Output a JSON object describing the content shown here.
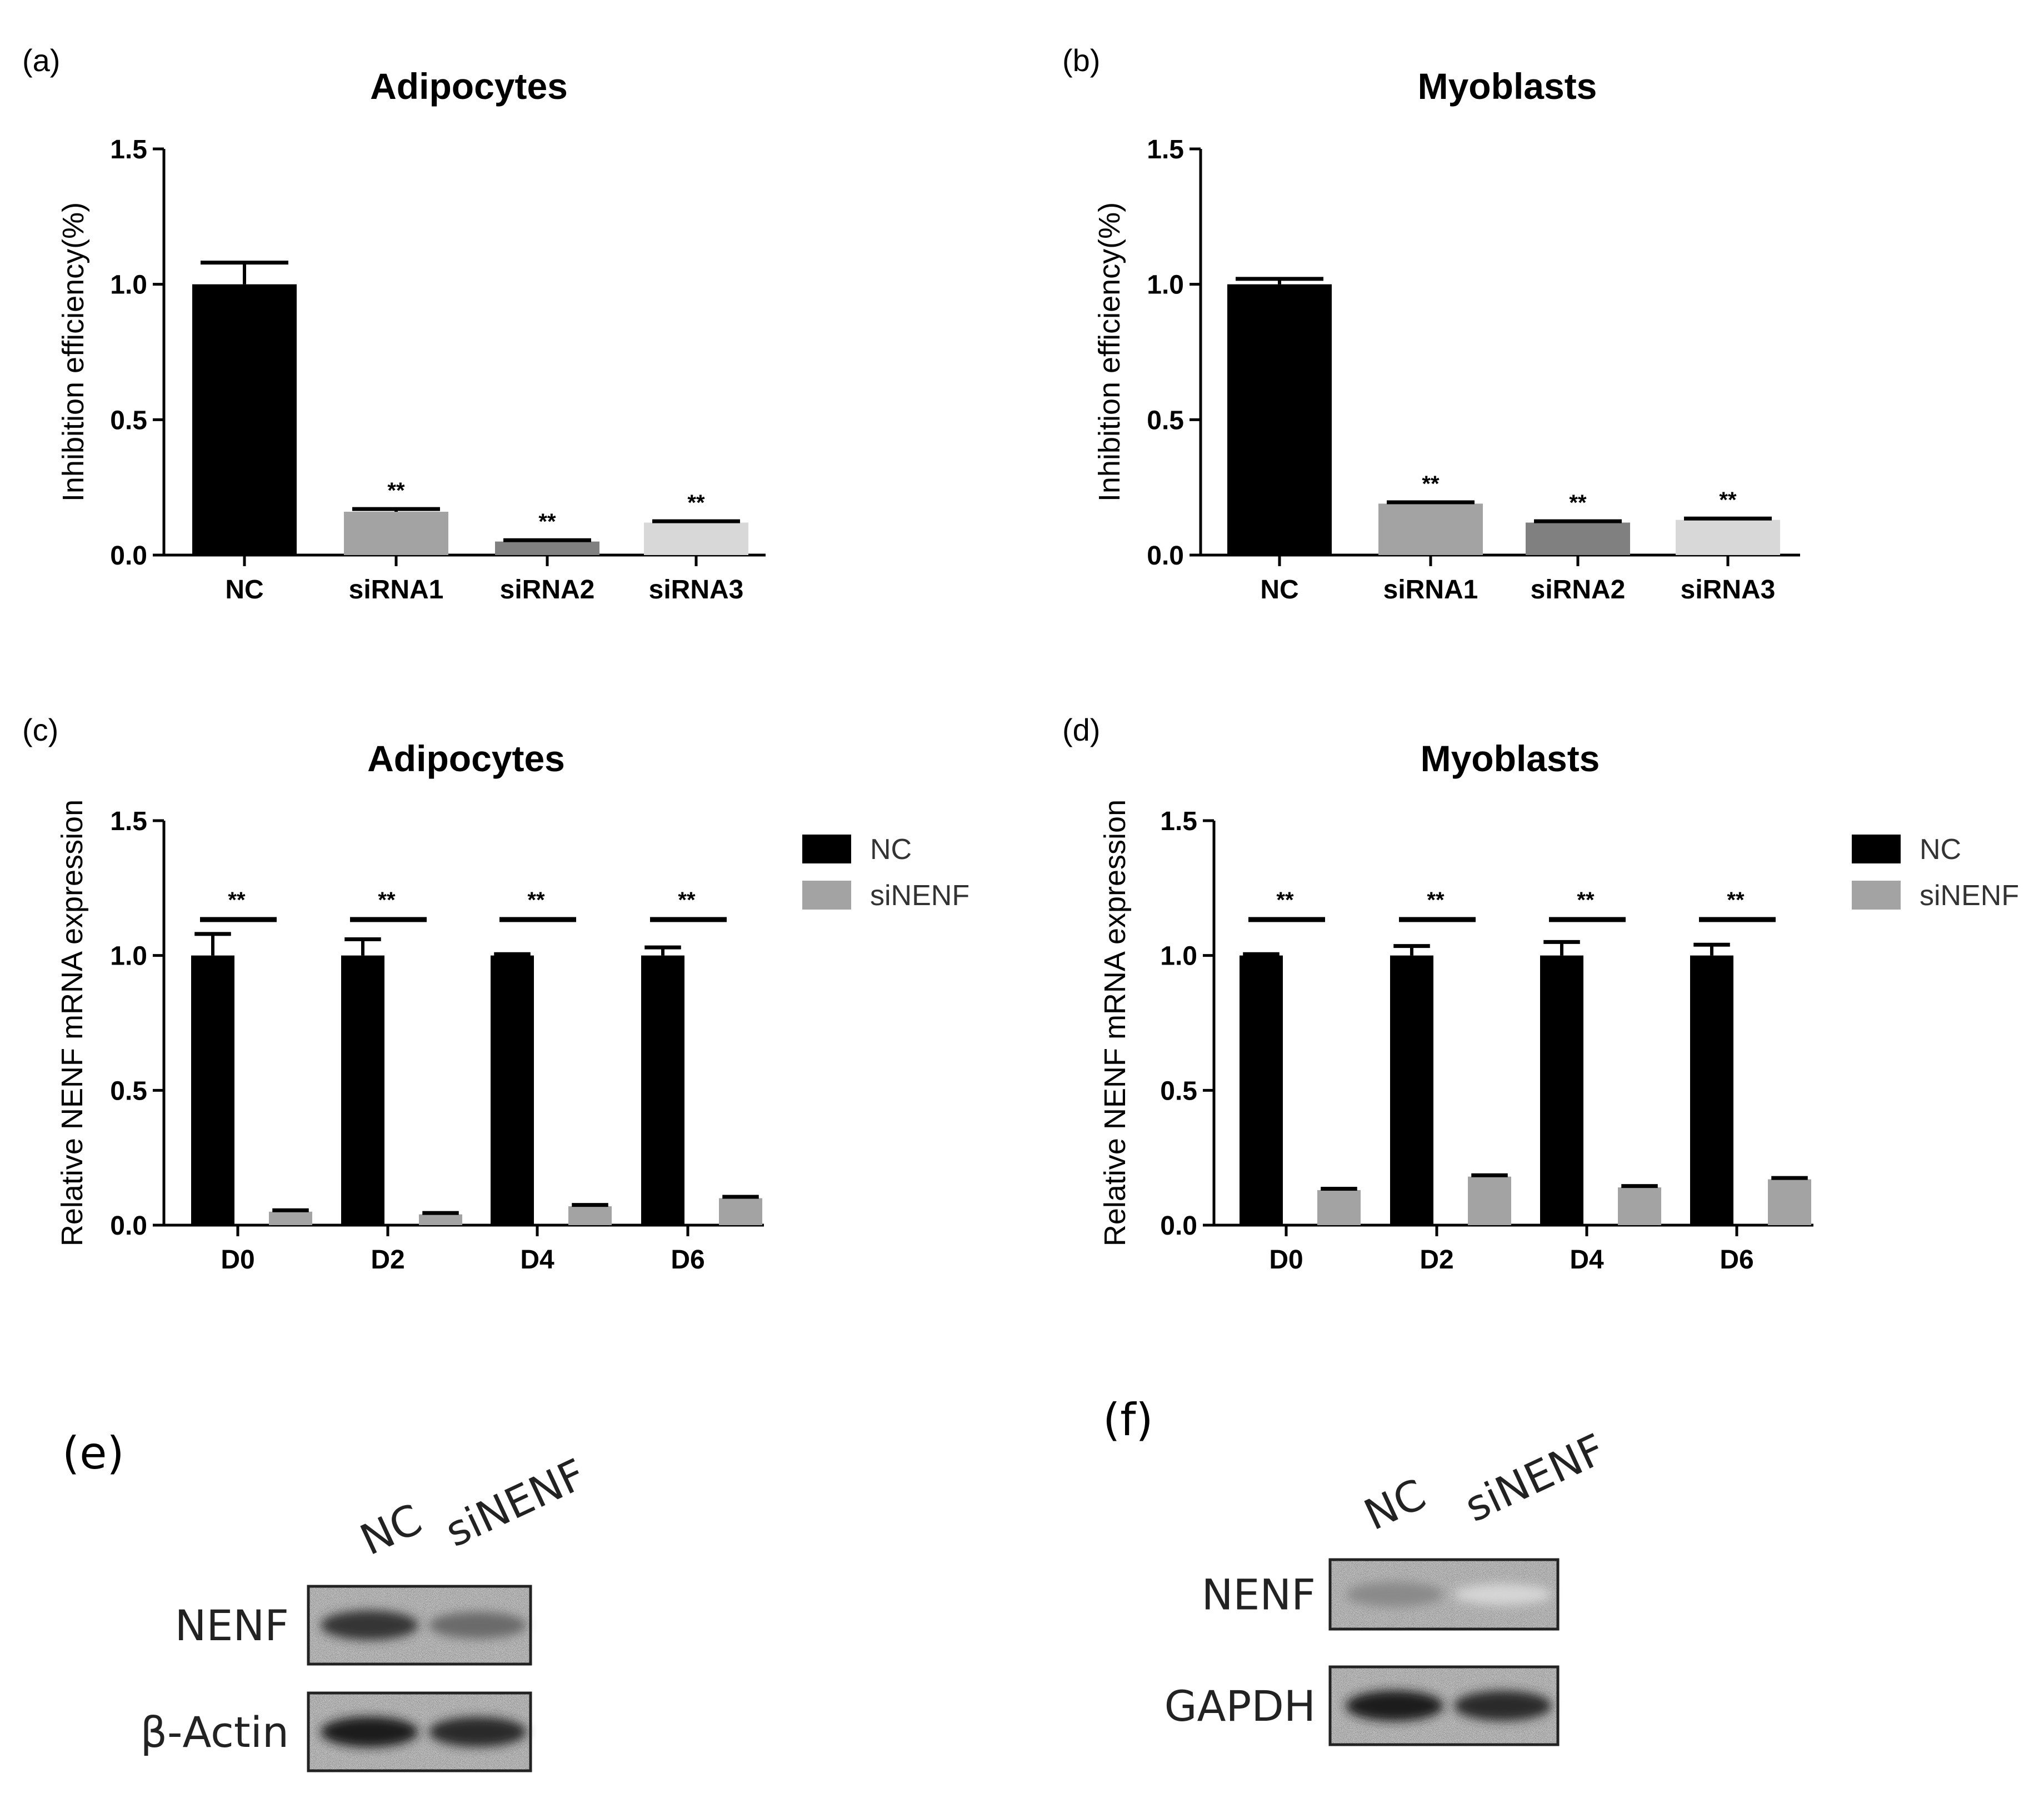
{
  "chart_data": [
    {
      "panel": "(a)",
      "type": "bar",
      "title": "Adipocytes",
      "ylabel": "Inhibition efficiency(%)",
      "ylim": [
        0,
        1.5
      ],
      "yticks": [
        "0.0",
        "0.5",
        "1.0",
        "1.5"
      ],
      "categories": [
        "NC",
        "siRNA1",
        "siRNA2",
        "siRNA3"
      ],
      "values": [
        1.0,
        0.16,
        0.05,
        0.12
      ],
      "errors": [
        0.08,
        0.01,
        0.005,
        0.005
      ],
      "colors": [
        "#000000",
        "#a3a3a3",
        "#808080",
        "#d8d8d8"
      ],
      "significance": [
        "",
        "**",
        "**",
        "**"
      ]
    },
    {
      "panel": "(b)",
      "type": "bar",
      "title": "Myoblasts",
      "ylabel": "Inhibition efficiency(%)",
      "ylim": [
        0,
        1.5
      ],
      "yticks": [
        "0.0",
        "0.5",
        "1.0",
        "1.5"
      ],
      "categories": [
        "NC",
        "siRNA1",
        "siRNA2",
        "siRNA3"
      ],
      "values": [
        1.0,
        0.19,
        0.12,
        0.13
      ],
      "errors": [
        0.02,
        0.005,
        0.005,
        0.005
      ],
      "colors": [
        "#000000",
        "#a3a3a3",
        "#808080",
        "#d8d8d8"
      ],
      "significance": [
        "",
        "**",
        "**",
        "**"
      ]
    },
    {
      "panel": "(c)",
      "type": "bar",
      "title": "Adipocytes",
      "ylabel": "Relative NENF mRNA expression",
      "ylim": [
        0,
        1.5
      ],
      "yticks": [
        "0.0",
        "0.5",
        "1.0",
        "1.5"
      ],
      "categories": [
        "D0",
        "D2",
        "D4",
        "D6"
      ],
      "series": [
        {
          "name": "NC",
          "color": "#000000",
          "values": [
            1.0,
            1.0,
            1.0,
            1.0
          ],
          "errors": [
            0.08,
            0.06,
            0.005,
            0.03
          ]
        },
        {
          "name": "siNENF",
          "color": "#a3a3a3",
          "values": [
            0.05,
            0.04,
            0.07,
            0.1
          ],
          "errors": [
            0.005,
            0.005,
            0.005,
            0.005
          ]
        }
      ],
      "significance": [
        "**",
        "**",
        "**",
        "**"
      ],
      "legend": "top-right"
    },
    {
      "panel": "(d)",
      "type": "bar",
      "title": "Myoblasts",
      "ylabel": "Relative NENF mRNA expression",
      "ylim": [
        0,
        1.5
      ],
      "yticks": [
        "0.0",
        "0.5",
        "1.0",
        "1.5"
      ],
      "categories": [
        "D0",
        "D2",
        "D4",
        "D6"
      ],
      "series": [
        {
          "name": "NC",
          "color": "#000000",
          "values": [
            1.0,
            1.0,
            1.0,
            1.0
          ],
          "errors": [
            0.005,
            0.035,
            0.05,
            0.04
          ]
        },
        {
          "name": "siNENF",
          "color": "#a3a3a3",
          "values": [
            0.13,
            0.18,
            0.14,
            0.17
          ],
          "errors": [
            0.005,
            0.005,
            0.005,
            0.005
          ]
        }
      ],
      "significance": [
        "**",
        "**",
        "**",
        "**"
      ],
      "legend": "top-right"
    }
  ],
  "blots": [
    {
      "panel": "(e)",
      "lanes": [
        "NC",
        "siNENF"
      ],
      "rows": [
        {
          "label": "NENF",
          "band_intensity": [
            0.85,
            0.6
          ]
        },
        {
          "label": "β-Actin",
          "band_intensity": [
            0.95,
            0.9
          ]
        }
      ]
    },
    {
      "panel": "(f)",
      "lanes": [
        "NC",
        "siNENF"
      ],
      "rows": [
        {
          "label": "NENF",
          "band_intensity": [
            0.45,
            0.1
          ]
        },
        {
          "label": "GAPDH",
          "band_intensity": [
            0.95,
            0.9
          ]
        }
      ]
    }
  ]
}
